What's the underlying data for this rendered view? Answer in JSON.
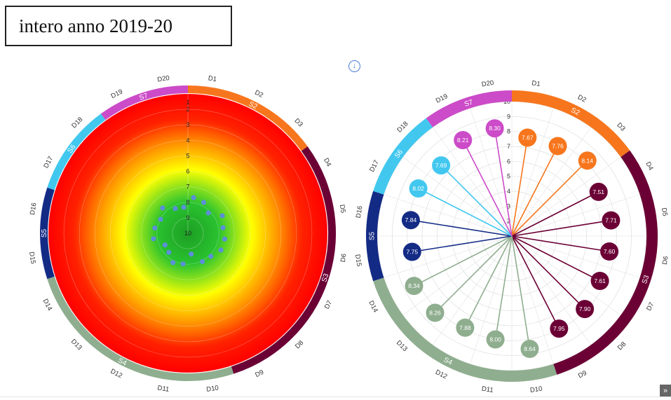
{
  "header": {
    "title": "intero anno 2019-20"
  },
  "icons": {
    "download": "download-icon",
    "scroll_top": "double-chevron-up-icon"
  },
  "colors": {
    "S1": "#f7761d",
    "S2": "#6b0035",
    "S3": "#8fae8f",
    "S4": "#142b85",
    "S5": "#42c8ef",
    "S6": "#cc4bc8",
    "heat_outer": "#ff0000",
    "heat_mid": "#ffff00",
    "heat_inner": "#29c22f",
    "dots": "#5b8fd8"
  },
  "chart_data": [
    {
      "type": "radar-heatmap",
      "scale": {
        "min": 1,
        "max": 10,
        "ticks": [
          "1",
          "2",
          "3",
          "4",
          "5",
          "6",
          "7",
          "8",
          "9",
          "10"
        ],
        "reversed": true
      },
      "categories": [
        "D1",
        "D2",
        "D3",
        "D4",
        "D5",
        "D6",
        "D7",
        "D8",
        "D9",
        "D10",
        "D11",
        "D12",
        "D13",
        "D14",
        "D15",
        "D16",
        "D17",
        "D18",
        "D19",
        "D20"
      ],
      "groups": [
        {
          "label": "S2",
          "range": [
            0,
            3
          ],
          "color": "#f7761d"
        },
        {
          "label": "S3",
          "range": [
            3,
            9
          ],
          "color": "#6b0035"
        },
        {
          "label": "S4",
          "range": [
            9,
            14
          ],
          "color": "#8fae8f"
        },
        {
          "label": "S5",
          "range": [
            14,
            16
          ],
          "color": "#142b85"
        },
        {
          "label": "S6",
          "range": [
            16,
            18
          ],
          "color": "#42c8ef"
        },
        {
          "label": "S7",
          "range": [
            18,
            20
          ],
          "color": "#cc4bc8"
        }
      ],
      "values": [
        7.67,
        7.76,
        8.14,
        7.51,
        7.71,
        7.6,
        7.61,
        7.9,
        7.95,
        8.64,
        8.0,
        7.88,
        8.26,
        8.34,
        7.75,
        7.84,
        8.02,
        7.69,
        8.21,
        8.3
      ]
    },
    {
      "type": "radar-lollipop",
      "scale": {
        "min": 1,
        "max": 10,
        "ticks": [
          "1",
          "2",
          "3",
          "4",
          "5",
          "6",
          "7",
          "8",
          "9",
          "10"
        ]
      },
      "categories": [
        "D1",
        "D2",
        "D3",
        "D4",
        "D5",
        "D6",
        "D7",
        "D8",
        "D9",
        "D10",
        "D11",
        "D12",
        "D13",
        "D14",
        "D15",
        "D16",
        "D17",
        "D18",
        "D19",
        "D20"
      ],
      "groups": [
        {
          "label": "S2",
          "range": [
            0,
            3
          ],
          "color": "#f7761d"
        },
        {
          "label": "S3",
          "range": [
            3,
            9
          ],
          "color": "#6b0035"
        },
        {
          "label": "S4",
          "range": [
            9,
            14
          ],
          "color": "#8fae8f"
        },
        {
          "label": "S5",
          "range": [
            14,
            16
          ],
          "color": "#142b85"
        },
        {
          "label": "S6",
          "range": [
            16,
            18
          ],
          "color": "#42c8ef"
        },
        {
          "label": "S7",
          "range": [
            18,
            20
          ],
          "color": "#cc4bc8"
        }
      ],
      "values": [
        7.67,
        7.76,
        8.14,
        7.51,
        7.71,
        7.6,
        7.61,
        7.9,
        7.95,
        8.64,
        8.0,
        7.88,
        8.26,
        8.34,
        7.75,
        7.84,
        8.02,
        7.69,
        8.21,
        8.3
      ],
      "value_labels": [
        "7.67",
        "7.76",
        "8.14",
        "7.51",
        "7.71",
        "7.60",
        "7.61",
        "7.90",
        "7.95",
        "8.64",
        "8.00",
        "7.88",
        "8.26",
        "8.34",
        "7.75",
        "7.84",
        "8.02",
        "7.69",
        "8.21",
        "8.30"
      ]
    }
  ]
}
